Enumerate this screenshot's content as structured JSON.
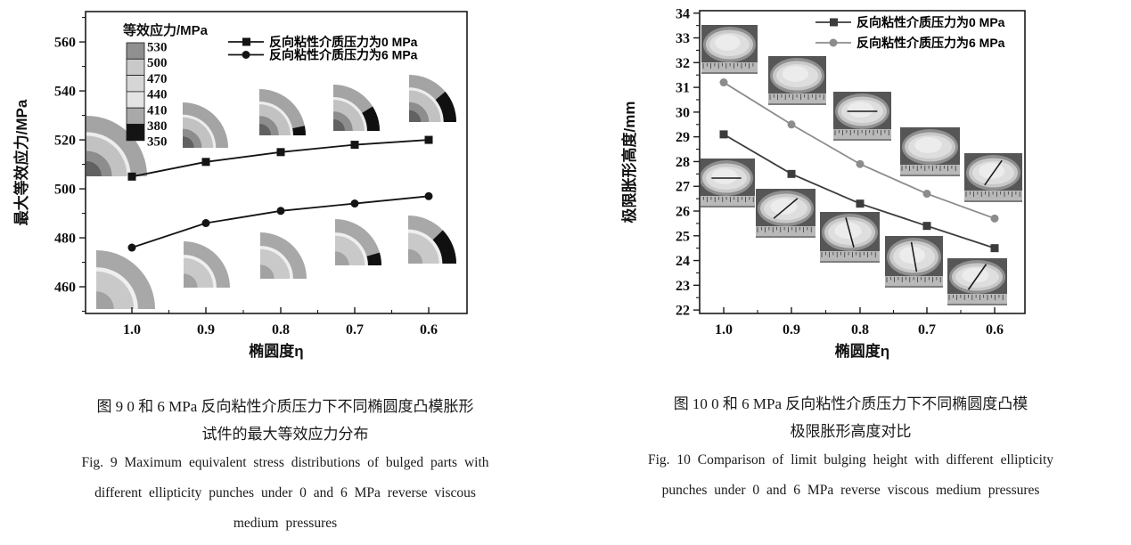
{
  "figure9": {
    "caption_cn_line1": "图 9  0 和 6 MPa 反向粘性介质压力下不同椭圆度凸模胀形",
    "caption_cn_line2": "试件的最大等效应力分布",
    "caption_en_line1": "Fig. 9  Maximum equivalent stress distributions of bulged parts with",
    "caption_en_line2": "different ellipticity punches under 0 and 6 MPa reverse viscous",
    "caption_en_line3": "medium pressures"
  },
  "figure10": {
    "caption_cn_line1": "图 10  0 和 6 MPa 反向粘性介质压力下不同椭圆度凸模",
    "caption_cn_line2": "极限胀形高度对比",
    "caption_en_line1": "Fig. 10  Comparison of limit bulging height with different ellipticity",
    "caption_en_line2": "punches under 0 and 6 MPa reverse viscous medium pressures"
  },
  "chart_data": [
    {
      "type": "line",
      "xlabel": "椭圆度η",
      "ylabel": "最大等效应力/MPa",
      "xticks": [
        "1.0",
        "0.9",
        "0.8",
        "0.7",
        "0.6"
      ],
      "x_axis_note": "ellipticity decreases left to right, equal spacing",
      "ylim": [
        449.1,
        572.4
      ],
      "yticks": [
        460,
        480,
        500,
        520,
        540,
        560
      ],
      "grid": false,
      "legend_position": "top-right-inside",
      "series": [
        {
          "name": "反向粘性介质压力为0 MPa",
          "marker": "square",
          "color": "#141414",
          "values": [
            505,
            511,
            515,
            518,
            520
          ]
        },
        {
          "name": "反向粘性介质压力为6 MPa",
          "marker": "circle",
          "color": "#141414",
          "values": [
            476,
            486,
            491,
            494,
            497
          ]
        }
      ],
      "colorbar_legend": {
        "title": "等效应力/MPa",
        "boundary_labels": [
          "530",
          "500",
          "470",
          "440",
          "410",
          "380",
          "350"
        ],
        "cell_colors": [
          "#909090",
          "#c9c9c9",
          "#d6d6d6",
          "#e3e3e3",
          "#a9a9a9",
          "#141414"
        ]
      },
      "insets_note": "two rows of quarter stress-contour plots, one per ellipticity"
    },
    {
      "type": "line",
      "xlabel": "椭圆度η",
      "ylabel": "极限胀形高度/mm",
      "xticks": [
        "1.0",
        "0.9",
        "0.8",
        "0.7",
        "0.6"
      ],
      "x_axis_note": "ellipticity decreases left to right, equal spacing",
      "ylim": [
        21.86,
        34.1
      ],
      "yticks": [
        22,
        23,
        24,
        25,
        26,
        27,
        28,
        29,
        30,
        31,
        32,
        33,
        34
      ],
      "grid": false,
      "legend_position": "top-right-inside",
      "series": [
        {
          "name": "反向粘性介质压力为0 MPa",
          "marker": "square",
          "color": "#3c3c3c",
          "values": [
            29.1,
            27.5,
            26.3,
            25.4,
            24.5
          ]
        },
        {
          "name": "反向粘性介质压力为6 MPa",
          "marker": "circle",
          "color": "#8c8c8c",
          "values": [
            31.2,
            29.5,
            27.9,
            26.7,
            25.7
          ]
        }
      ],
      "insets_note": "two rows of bulged-specimen photos with ruler, one per ellipticity"
    }
  ]
}
